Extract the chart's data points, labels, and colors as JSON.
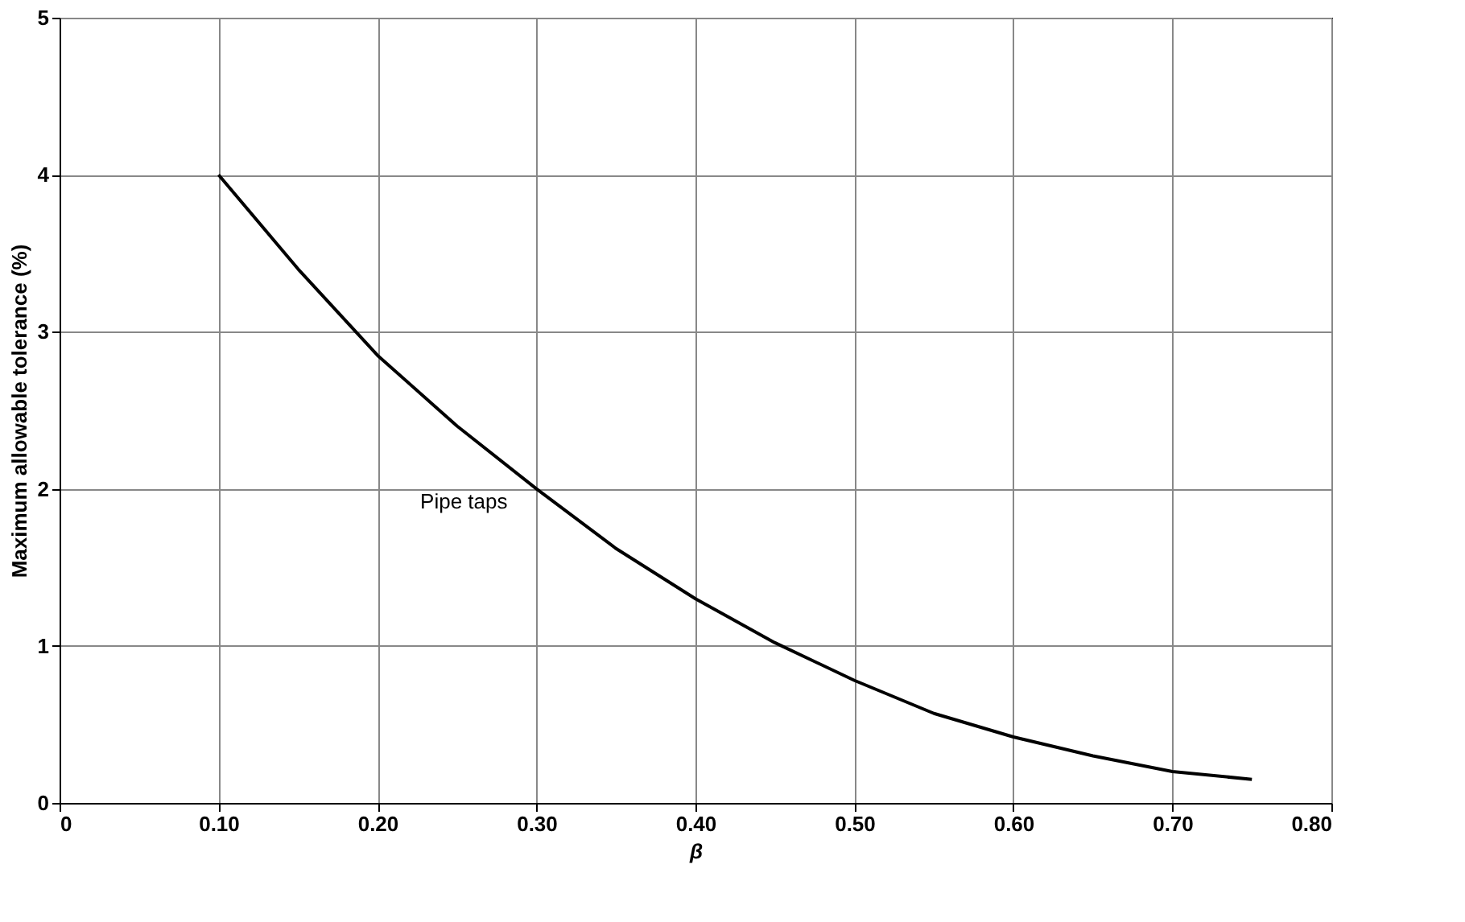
{
  "chart_data": {
    "type": "line",
    "xlabel": "β",
    "ylabel": "Maximum allowable tolerance (%)",
    "x": [
      0.1,
      0.15,
      0.2,
      0.25,
      0.3,
      0.35,
      0.4,
      0.45,
      0.5,
      0.55,
      0.6,
      0.65,
      0.7,
      0.75
    ],
    "series": [
      {
        "color": "#000000",
        "values": [
          4.0,
          3.4,
          2.85,
          2.4,
          2.0,
          1.62,
          1.3,
          1.02,
          0.78,
          0.57,
          0.42,
          0.3,
          0.2,
          0.15
        ]
      }
    ],
    "xlim": [
      0,
      0.8
    ],
    "xticks": [
      0,
      {
        "value": 0.1,
        "label": "0.10"
      },
      {
        "value": 0.2,
        "label": "0.20"
      },
      {
        "value": 0.3,
        "label": "0.30"
      },
      {
        "value": 0.4,
        "label": "0.40"
      },
      {
        "value": 0.5,
        "label": "0.50"
      },
      {
        "value": 0.6,
        "label": "0.60"
      },
      {
        "value": 0.7,
        "label": "0.70"
      },
      {
        "value": 0.8,
        "label": "0.80"
      }
    ],
    "ylim": [
      0,
      5
    ],
    "yticks": [
      0,
      1,
      2,
      3,
      4,
      5
    ],
    "grid": true,
    "annotations": [
      {
        "text": "Pipe taps",
        "x": 0.3,
        "y": 2.0
      }
    ]
  }
}
